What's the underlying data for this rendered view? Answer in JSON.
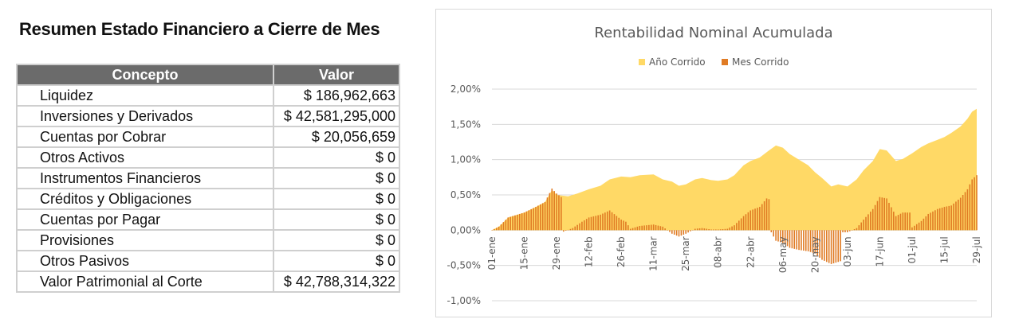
{
  "summary": {
    "title": "Resumen Estado Financiero a Cierre de Mes",
    "headers": [
      "Concepto",
      "Valor"
    ],
    "rows": [
      {
        "concept": "Liquidez",
        "value": "$ 186,962,663"
      },
      {
        "concept": "Inversiones y Derivados",
        "value": "$ 42,581,295,000"
      },
      {
        "concept": "Cuentas por Cobrar",
        "value": "$ 20,056,659"
      },
      {
        "concept": "Otros Activos",
        "value": "$ 0"
      },
      {
        "concept": "Instrumentos Financieros",
        "value": "$ 0"
      },
      {
        "concept": "Créditos y Obligaciones",
        "value": "$ 0"
      },
      {
        "concept": "Cuentas por Pagar",
        "value": "$ 0"
      },
      {
        "concept": "Provisiones",
        "value": "$ 0"
      },
      {
        "concept": "Otros Pasivos",
        "value": "$ 0"
      },
      {
        "concept": "Valor Patrimonial al Corte",
        "value": "$ 42,788,314,322"
      }
    ]
  },
  "chart_data": {
    "type": "area",
    "title": "Rentabilidad Nominal Acumulada",
    "legend_position": "top",
    "ylim": [
      -0.01,
      0.02
    ],
    "y_ticks": [
      "2,00%",
      "1,50%",
      "1,00%",
      "0,50%",
      "0,00%",
      "-0,50%",
      "-1,00%"
    ],
    "y_tick_values": [
      0.02,
      0.015,
      0.01,
      0.005,
      0,
      -0.005,
      -0.01
    ],
    "x_ticks": [
      "01-ene",
      "15-ene",
      "29-ene",
      "12-feb",
      "26-feb",
      "11-mar",
      "25-mar",
      "08-abr",
      "22-abr",
      "06-may",
      "20-may",
      "03-jun",
      "17-jun",
      "01-jul",
      "15-jul",
      "29-jul"
    ],
    "grid": true,
    "series": [
      {
        "name": "Año Corrido",
        "kind": "area",
        "color": "#FFD966",
        "points": [
          [
            "01-ene",
            0.0
          ],
          [
            "04-ene",
            0.0005
          ],
          [
            "08-ene",
            0.0018
          ],
          [
            "15-ene",
            0.0025
          ],
          [
            "20-ene",
            0.0033
          ],
          [
            "24-ene",
            0.004
          ],
          [
            "27-ene",
            0.0057
          ],
          [
            "29-ene",
            0.005
          ],
          [
            "03-feb",
            0.0048
          ],
          [
            "07-feb",
            0.0052
          ],
          [
            "12-feb",
            0.0058
          ],
          [
            "17-feb",
            0.0063
          ],
          [
            "21-feb",
            0.0072
          ],
          [
            "26-feb",
            0.0076
          ],
          [
            "01-mar",
            0.0075
          ],
          [
            "05-mar",
            0.0078
          ],
          [
            "11-mar",
            0.0079
          ],
          [
            "15-mar",
            0.0072
          ],
          [
            "19-mar",
            0.0069
          ],
          [
            "22-mar",
            0.0063
          ],
          [
            "25-mar",
            0.0065
          ],
          [
            "29-mar",
            0.0072
          ],
          [
            "01-abr",
            0.0074
          ],
          [
            "05-abr",
            0.0071
          ],
          [
            "08-abr",
            0.007
          ],
          [
            "12-abr",
            0.0072
          ],
          [
            "15-abr",
            0.0078
          ],
          [
            "19-abr",
            0.0092
          ],
          [
            "22-abr",
            0.0098
          ],
          [
            "26-abr",
            0.0103
          ],
          [
            "30-abr",
            0.0113
          ],
          [
            "03-may",
            0.012
          ],
          [
            "06-may",
            0.0117
          ],
          [
            "09-may",
            0.0108
          ],
          [
            "13-may",
            0.01
          ],
          [
            "17-may",
            0.0092
          ],
          [
            "20-may",
            0.0082
          ],
          [
            "23-may",
            0.0074
          ],
          [
            "27-may",
            0.0062
          ],
          [
            "30-may",
            0.0065
          ],
          [
            "03-jun",
            0.0062
          ],
          [
            "07-jun",
            0.0072
          ],
          [
            "10-jun",
            0.0085
          ],
          [
            "14-jun",
            0.0098
          ],
          [
            "17-jun",
            0.0115
          ],
          [
            "20-jun",
            0.0113
          ],
          [
            "24-jun",
            0.0098
          ],
          [
            "27-jun",
            0.0101
          ],
          [
            "01-jul",
            0.0109
          ],
          [
            "05-jul",
            0.0118
          ],
          [
            "08-jul",
            0.0123
          ],
          [
            "12-jul",
            0.0128
          ],
          [
            "15-jul",
            0.0132
          ],
          [
            "18-jul",
            0.0138
          ],
          [
            "22-jul",
            0.0147
          ],
          [
            "25-jul",
            0.0158
          ],
          [
            "27-jul",
            0.0168
          ],
          [
            "29-jul",
            0.0172
          ]
        ]
      },
      {
        "name": "Mes Corrido",
        "kind": "bar",
        "color": "#E07B24",
        "points": [
          [
            "01-ene",
            0.0
          ],
          [
            "04-ene",
            0.0005
          ],
          [
            "08-ene",
            0.0018
          ],
          [
            "15-ene",
            0.0025
          ],
          [
            "20-ene",
            0.0033
          ],
          [
            "24-ene",
            0.004
          ],
          [
            "27-ene",
            0.0059
          ],
          [
            "29-ene",
            0.0052
          ],
          [
            "31-ene",
            0.0047
          ],
          [
            "01-feb",
            -0.0002
          ],
          [
            "05-feb",
            0.0003
          ],
          [
            "09-feb",
            0.0012
          ],
          [
            "12-feb",
            0.0018
          ],
          [
            "17-feb",
            0.0022
          ],
          [
            "21-feb",
            0.0028
          ],
          [
            "26-feb",
            0.0015
          ],
          [
            "28-feb",
            0.0012
          ],
          [
            "01-mar",
            0.0002
          ],
          [
            "05-mar",
            0.0006
          ],
          [
            "11-mar",
            0.0008
          ],
          [
            "15-mar",
            0.0005
          ],
          [
            "19-mar",
            -0.0005
          ],
          [
            "22-mar",
            -0.0009
          ],
          [
            "25-mar",
            -0.0005
          ],
          [
            "29-mar",
            0.0002
          ],
          [
            "01-abr",
            0.0003
          ],
          [
            "05-abr",
            0.0001
          ],
          [
            "08-abr",
            0.0001
          ],
          [
            "12-abr",
            0.0002
          ],
          [
            "15-abr",
            0.0007
          ],
          [
            "19-abr",
            0.002
          ],
          [
            "22-abr",
            0.0028
          ],
          [
            "26-abr",
            0.0033
          ],
          [
            "29-abr",
            0.0045
          ],
          [
            "30-abr",
            0.0044
          ],
          [
            "01-may",
            -0.0003
          ],
          [
            "03-may",
            -0.0015
          ],
          [
            "06-may",
            -0.0018
          ],
          [
            "09-may",
            -0.0025
          ],
          [
            "13-may",
            -0.0028
          ],
          [
            "17-may",
            -0.003
          ],
          [
            "20-may",
            -0.0033
          ],
          [
            "23-may",
            -0.0042
          ],
          [
            "27-may",
            -0.0048
          ],
          [
            "30-may",
            -0.0045
          ],
          [
            "31-may",
            -0.0044
          ],
          [
            "01-jun",
            -0.0003
          ],
          [
            "03-jun",
            -0.0003
          ],
          [
            "07-jun",
            0.0003
          ],
          [
            "10-jun",
            0.0015
          ],
          [
            "14-jun",
            0.003
          ],
          [
            "17-jun",
            0.0047
          ],
          [
            "20-jun",
            0.0045
          ],
          [
            "24-jun",
            0.002
          ],
          [
            "27-jun",
            0.0025
          ],
          [
            "30-jun",
            0.0025
          ],
          [
            "01-jul",
            0.0004
          ],
          [
            "05-jul",
            0.0013
          ],
          [
            "08-jul",
            0.0023
          ],
          [
            "12-jul",
            0.003
          ],
          [
            "15-jul",
            0.0033
          ],
          [
            "18-jul",
            0.0035
          ],
          [
            "22-jul",
            0.0046
          ],
          [
            "25-jul",
            0.0058
          ],
          [
            "27-jul",
            0.0072
          ],
          [
            "29-jul",
            0.0078
          ]
        ]
      }
    ]
  }
}
